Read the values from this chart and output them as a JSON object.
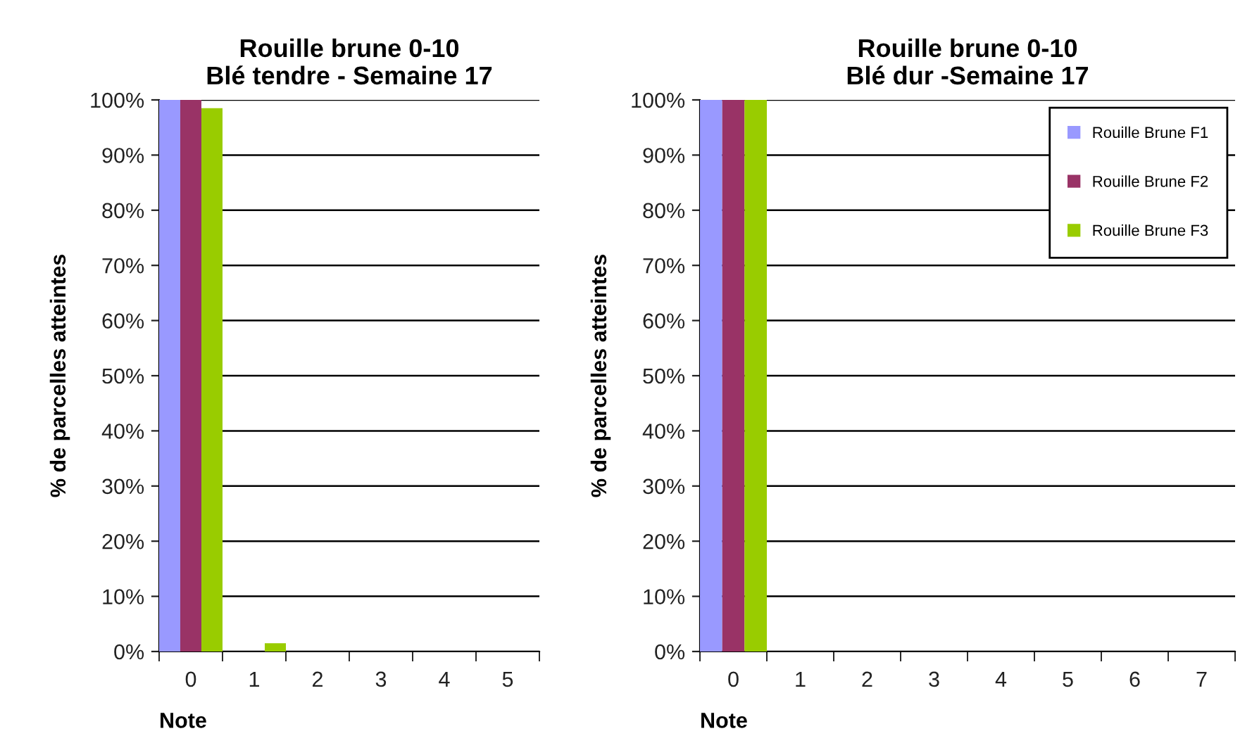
{
  "chart_data": [
    {
      "type": "bar",
      "title": "Rouille brune 0-10\nBlé tendre - Semaine 17",
      "xlabel": "Note",
      "ylabel": "% de parcelles atteintes",
      "categories": [
        "0",
        "1",
        "2",
        "3",
        "4",
        "5"
      ],
      "series": [
        {
          "color": "#9999ff",
          "values": [
            100,
            0,
            0,
            0,
            0,
            0
          ]
        },
        {
          "color": "#993366",
          "values": [
            100,
            0,
            0,
            0,
            0,
            0
          ]
        },
        {
          "color": "#99cc00",
          "values": [
            98.5,
            1.5,
            0,
            0,
            0,
            0
          ]
        }
      ],
      "ylim": [
        0,
        100
      ],
      "yticks": [
        {
          "value": 0,
          "label": "0%"
        },
        {
          "value": 10,
          "label": "10%"
        },
        {
          "value": 20,
          "label": "20%"
        },
        {
          "value": 30,
          "label": "30%"
        },
        {
          "value": 40,
          "label": "40%"
        },
        {
          "value": 50,
          "label": "50%"
        },
        {
          "value": 60,
          "label": "60%"
        },
        {
          "value": 70,
          "label": "70%"
        },
        {
          "value": 80,
          "label": "80%"
        },
        {
          "value": 90,
          "label": "90%"
        },
        {
          "value": 100,
          "label": "100%"
        }
      ],
      "grid": "y"
    },
    {
      "type": "bar",
      "title": "Rouille brune 0-10\nBlé dur -Semaine 17",
      "xlabel": "Note",
      "ylabel": "% de parcelles atteintes",
      "categories": [
        "0",
        "1",
        "2",
        "3",
        "4",
        "5",
        "6",
        "7"
      ],
      "series": [
        {
          "name": "Rouille Brune F1",
          "color": "#9999ff",
          "values": [
            100,
            0,
            0,
            0,
            0,
            0,
            0,
            0
          ]
        },
        {
          "name": "Rouille Brune F2",
          "color": "#993366",
          "values": [
            100,
            0,
            0,
            0,
            0,
            0,
            0,
            0
          ]
        },
        {
          "name": "Rouille Brune F3",
          "color": "#99cc00",
          "values": [
            100,
            0,
            0,
            0,
            0,
            0,
            0,
            0
          ]
        }
      ],
      "ylim": [
        0,
        100
      ],
      "yticks": [
        {
          "value": 0,
          "label": "0%"
        },
        {
          "value": 10,
          "label": "10%"
        },
        {
          "value": 20,
          "label": "20%"
        },
        {
          "value": 30,
          "label": "30%"
        },
        {
          "value": 40,
          "label": "40%"
        },
        {
          "value": 50,
          "label": "50%"
        },
        {
          "value": 60,
          "label": "60%"
        },
        {
          "value": 70,
          "label": "70%"
        },
        {
          "value": 80,
          "label": "80%"
        },
        {
          "value": 90,
          "label": "90%"
        },
        {
          "value": 100,
          "label": "100%"
        }
      ],
      "grid": "y",
      "legend": "top right"
    }
  ]
}
